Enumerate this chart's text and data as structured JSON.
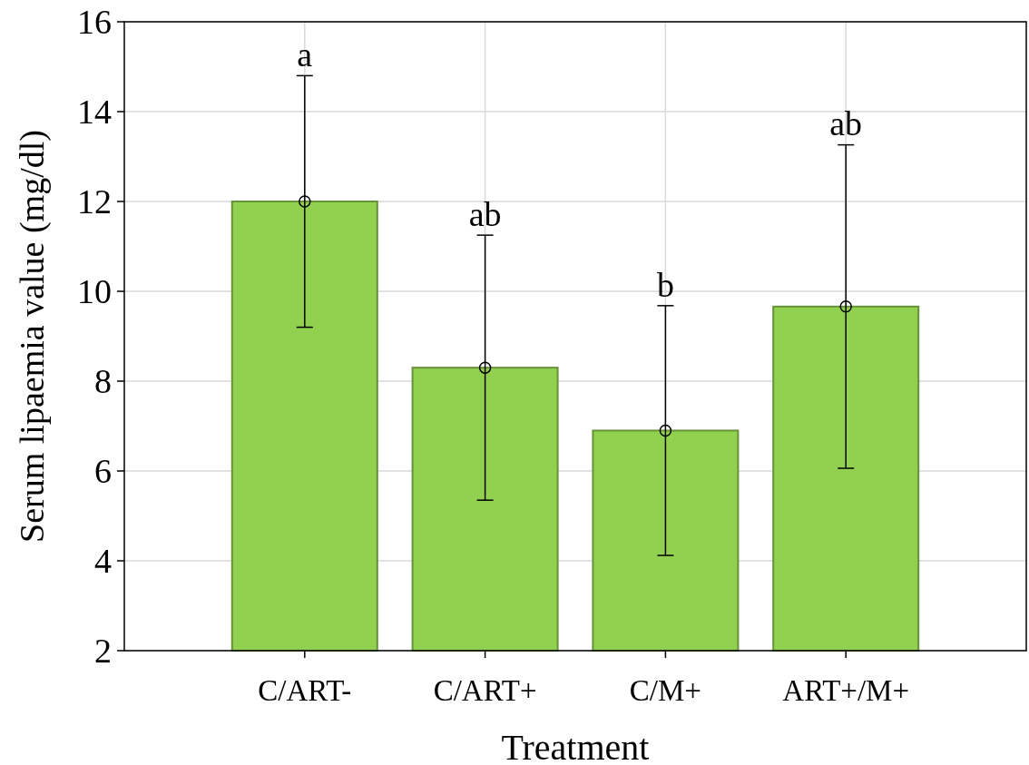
{
  "chart_data": {
    "type": "bar",
    "xlabel": "Treatment",
    "ylabel": "Serum lipaemia value (mg/dl)",
    "categories": [
      "C/ART-",
      "C/ART+",
      "C/M+",
      "ART+/M+"
    ],
    "series": [
      {
        "color": "#92d050",
        "values": [
          12.0,
          8.3,
          6.9,
          9.66
        ],
        "errors": [
          2.8,
          2.95,
          2.78,
          3.6
        ]
      },
      {
        "type": "scatter",
        "x": [
          "C/ART-",
          "C/ART+",
          "C/M+",
          "ART+/M+"
        ],
        "color": "#000000",
        "values": [
          12.0,
          8.3,
          6.9,
          9.66
        ],
        "marker": "circle"
      }
    ],
    "ylim": [
      2,
      16
    ],
    "yticks": [
      2,
      4,
      6,
      8,
      10,
      12,
      14,
      16
    ],
    "grid": true,
    "annotations": [
      {
        "text": "a",
        "x": "C/ART-",
        "y": 14.8
      },
      {
        "text": "ab",
        "x": "C/ART+",
        "y": 11.25
      },
      {
        "text": "b",
        "x": "C/M+",
        "y": 9.68
      },
      {
        "text": "ab",
        "x": "ART+/M+",
        "y": 13.27
      }
    ]
  }
}
